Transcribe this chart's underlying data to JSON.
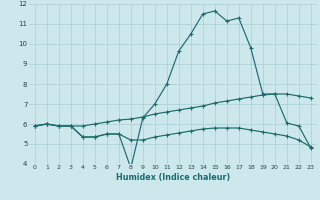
{
  "xlabel": "Humidex (Indice chaleur)",
  "ylabel": "",
  "background_color": "#cce8ec",
  "grid_color": "#a8cdd4",
  "line_color": "#1e6b6b",
  "xlim": [
    -0.5,
    23.5
  ],
  "ylim": [
    4,
    12
  ],
  "xticks": [
    0,
    1,
    2,
    3,
    4,
    5,
    6,
    7,
    8,
    9,
    10,
    11,
    12,
    13,
    14,
    15,
    16,
    17,
    18,
    19,
    20,
    21,
    22,
    23
  ],
  "yticks": [
    4,
    5,
    6,
    7,
    8,
    9,
    10,
    11,
    12
  ],
  "series1": [
    5.9,
    6.0,
    5.9,
    5.9,
    5.35,
    5.35,
    5.5,
    5.5,
    3.8,
    6.3,
    7.0,
    8.0,
    9.65,
    10.5,
    11.5,
    11.65,
    11.15,
    11.3,
    9.8,
    7.5,
    7.5,
    6.05,
    5.9,
    4.8
  ],
  "series2": [
    5.9,
    6.0,
    5.9,
    5.9,
    5.9,
    6.0,
    6.1,
    6.2,
    6.25,
    6.35,
    6.5,
    6.6,
    6.7,
    6.8,
    6.9,
    7.05,
    7.15,
    7.25,
    7.35,
    7.45,
    7.5,
    7.5,
    7.4,
    7.3
  ],
  "series3": [
    5.9,
    6.0,
    5.9,
    5.9,
    5.35,
    5.35,
    5.5,
    5.5,
    5.2,
    5.2,
    5.35,
    5.45,
    5.55,
    5.65,
    5.75,
    5.8,
    5.8,
    5.8,
    5.7,
    5.6,
    5.5,
    5.4,
    5.2,
    4.85
  ]
}
